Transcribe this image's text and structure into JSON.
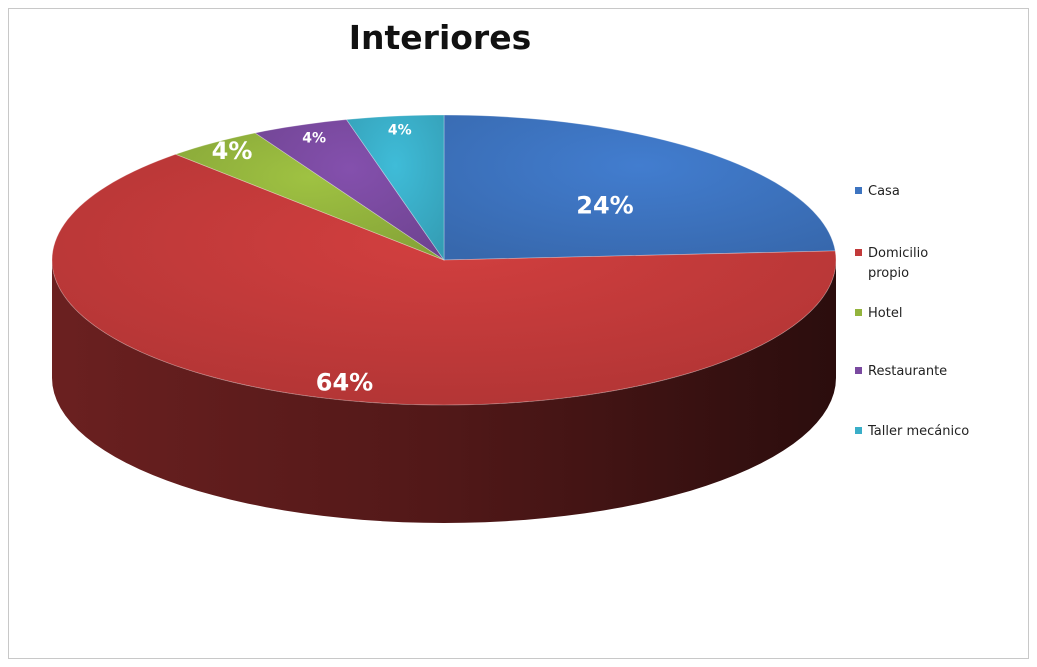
{
  "chart_data": {
    "type": "pie",
    "title": "Interiores",
    "categories": [
      "Casa",
      "Domicilio propio",
      "Hotel",
      "Restaurante",
      "Taller mecánico"
    ],
    "values": [
      24,
      64,
      4,
      4,
      4
    ],
    "data_labels": [
      "24%",
      "64%",
      "4%",
      "4%",
      "4%"
    ],
    "colors": [
      "#3d74c0",
      "#c23a3a",
      "#93b43d",
      "#7a4aa0",
      "#3aaec8"
    ],
    "style": "3d",
    "legend": "right"
  }
}
